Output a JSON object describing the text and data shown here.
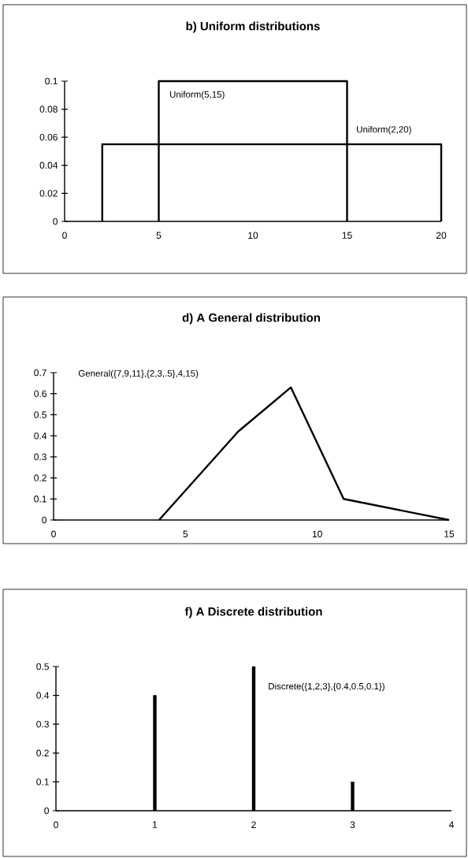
{
  "chart_data": [
    {
      "type": "line",
      "title": "b) Uniform distributions",
      "xlim": [
        0,
        20
      ],
      "ylim": [
        0,
        0.1
      ],
      "xticks": [
        0,
        5,
        10,
        15,
        20
      ],
      "yticks": [
        0,
        0.02,
        0.04,
        0.06,
        0.08,
        0.1
      ],
      "series": [
        {
          "name": "Uniform(5,15)",
          "color": "#000000",
          "x": [
            5,
            5,
            15,
            15
          ],
          "values": [
            0,
            0.1,
            0.1,
            0
          ]
        },
        {
          "name": "Uniform(2,20)",
          "color": "#000000",
          "x": [
            2,
            2,
            20,
            20
          ],
          "values": [
            0,
            0.055,
            0.055,
            0
          ]
        }
      ]
    },
    {
      "type": "line",
      "title": "d) A General distribution",
      "xlim": [
        0,
        15
      ],
      "ylim": [
        0,
        0.7
      ],
      "xticks": [
        0,
        5,
        10,
        15
      ],
      "yticks": [
        0,
        0.1,
        0.2,
        0.3,
        0.4,
        0.5,
        0.6,
        0.7
      ],
      "series": [
        {
          "name": "General({7,9,11},{2,3,.5},4,15)",
          "color": "#000000",
          "x": [
            4,
            7,
            9,
            11,
            15
          ],
          "values": [
            0,
            0.42,
            0.63,
            0.1,
            0
          ]
        }
      ]
    },
    {
      "type": "bar",
      "title": "f) A Discrete distribution",
      "xlim": [
        0,
        4
      ],
      "ylim": [
        0,
        0.5
      ],
      "xticks": [
        0,
        1,
        2,
        3,
        4
      ],
      "yticks": [
        0,
        0.1,
        0.2,
        0.3,
        0.4,
        0.5
      ],
      "series": [
        {
          "name": "Discrete({1,2,3},{0.4,0.5,0.1})",
          "color": "#000000",
          "x": [
            1,
            2,
            3
          ],
          "values": [
            0.4,
            0.5,
            0.1
          ]
        }
      ]
    }
  ]
}
